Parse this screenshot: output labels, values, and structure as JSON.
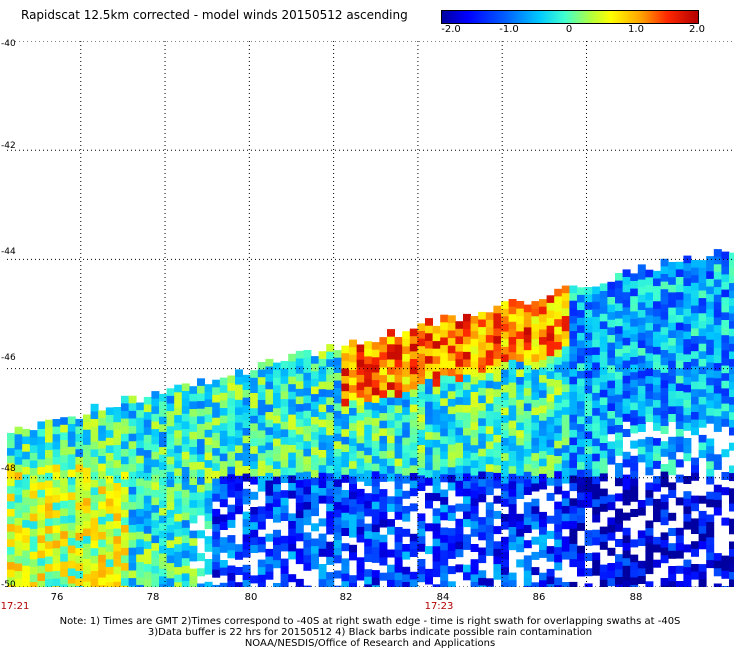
{
  "title": "Rapidscat 12.5km corrected - model winds 20150512 ascending",
  "colorbar": {
    "labels": [
      "-2.0",
      "-1.0",
      "0",
      "1.0",
      "2.0"
    ],
    "values": [
      -2.0,
      -1.0,
      0,
      1.0,
      2.0
    ]
  },
  "map": {
    "lon_range": [
      74.25,
      91.5
    ],
    "lat_range": [
      -50,
      -40
    ],
    "lat_ticks": [
      {
        "value": -40,
        "label": "-40"
      },
      {
        "value": -42,
        "label": "-42"
      },
      {
        "value": -44,
        "label": "-44"
      },
      {
        "value": -46,
        "label": "-46"
      },
      {
        "value": -48,
        "label": "-48"
      },
      {
        "value": -50,
        "label": "-50"
      }
    ],
    "lon_ticks": [
      {
        "value": 76,
        "label": "76"
      },
      {
        "value": 78,
        "label": "78"
      },
      {
        "value": 80,
        "label": "80"
      },
      {
        "value": 82,
        "label": "82"
      },
      {
        "value": 84,
        "label": "84"
      },
      {
        "value": 86,
        "label": "86"
      },
      {
        "value": 88,
        "label": "88"
      }
    ],
    "time_labels": [
      {
        "lon": 74.6,
        "label": "17:21"
      },
      {
        "lon": 84.0,
        "label": "17:23"
      }
    ],
    "grid": true
  },
  "notes": {
    "line1": "Note: 1) Times are GMT 2)Times correspond to -40S at right swath edge - time is right swath for overlapping swaths at -40S",
    "line2": "3)Data buffer is 22 hrs for 20150512 4) Black barbs indicate possible rain contamination",
    "line3": "NOAA/NESDIS/Office of Research and Applications"
  }
}
